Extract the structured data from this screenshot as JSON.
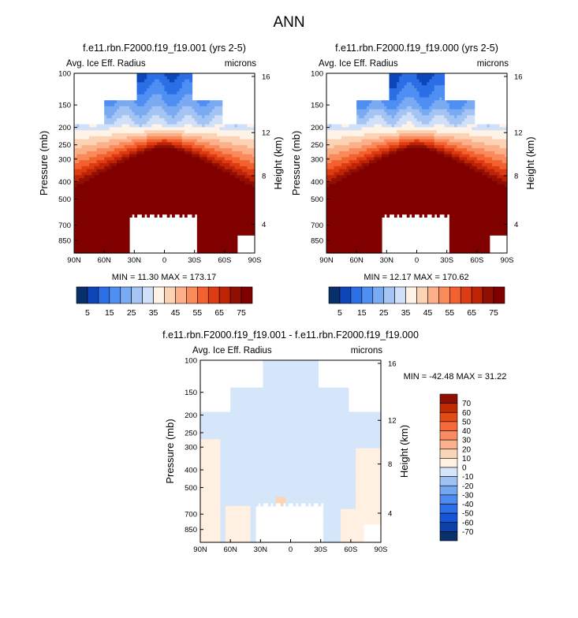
{
  "page": {
    "title": "ANN"
  },
  "colors": {
    "levels": [
      "#08306b",
      "#0c46b8",
      "#2b6ee6",
      "#4f8ef2",
      "#7aaaf2",
      "#a4c4f4",
      "#cfe0f8",
      "#fff2e6",
      "#fcd2b4",
      "#fbb08a",
      "#f88a5c",
      "#f2612e",
      "#dd3b12",
      "#bf2306",
      "#900f02",
      "#800000"
    ],
    "diff_levels": [
      "#08306b",
      "#0c3fa8",
      "#1656d6",
      "#2d6fe8",
      "#4e8bf0",
      "#74a6f2",
      "#9fc2f5",
      "#d5e6fa",
      "#fff0e2",
      "#fbd5b8",
      "#fbb18c",
      "#f88c60",
      "#f46a38",
      "#e24a16",
      "#c02a04",
      "#8f0e00"
    ]
  },
  "chart_data": [
    {
      "type": "heatmap",
      "title": "f.e11.rbn.F2000.f19_f19.001 (yrs 2-5)",
      "left_label": "Avg. Ice Eff. Radius",
      "right_label": "microns",
      "ylabel": "Pressure (mb)",
      "ylabel_right": "Height (km)",
      "x_ticks": [
        "90N",
        "60N",
        "30N",
        "0",
        "30S",
        "60S",
        "90S"
      ],
      "x_values": [
        90,
        60,
        30,
        0,
        -30,
        -60,
        -90
      ],
      "y_ticks": [
        100,
        150,
        200,
        250,
        300,
        400,
        500,
        700,
        850
      ],
      "y_right_ticks": [
        16,
        12,
        8,
        4
      ],
      "ylim": [
        1000,
        100
      ],
      "stats": "MIN =  11.30   MAX = 173.17",
      "min": 11.3,
      "max": 173.17,
      "colorbar": {
        "labels": [
          "5",
          "15",
          "25",
          "35",
          "45",
          "55",
          "65",
          "75"
        ]
      }
    },
    {
      "type": "heatmap",
      "title": "f.e11.rbn.F2000.f19_f19.000 (yrs 2-5)",
      "left_label": "Avg. Ice Eff. Radius",
      "right_label": "microns",
      "ylabel": "Pressure (mb)",
      "ylabel_right": "Height (km)",
      "x_ticks": [
        "90N",
        "60N",
        "30N",
        "0",
        "30S",
        "60S",
        "90S"
      ],
      "x_values": [
        90,
        60,
        30,
        0,
        -30,
        -60,
        -90
      ],
      "y_ticks": [
        100,
        150,
        200,
        250,
        300,
        400,
        500,
        700,
        850
      ],
      "y_right_ticks": [
        16,
        12,
        8,
        4
      ],
      "ylim": [
        1000,
        100
      ],
      "stats": "MIN =  12.17   MAX = 170.62",
      "min": 12.17,
      "max": 170.62,
      "colorbar": {
        "labels": [
          "5",
          "15",
          "25",
          "35",
          "45",
          "55",
          "65",
          "75"
        ]
      }
    },
    {
      "type": "heatmap",
      "title": "f.e11.rbn.F2000.f19_f19.001 - f.e11.rbn.F2000.f19_f19.000",
      "left_label": "Avg. Ice Eff. Radius",
      "right_label": "microns",
      "ylabel": "Pressure (mb)",
      "ylabel_right": "Height (km)",
      "x_ticks": [
        "90N",
        "60N",
        "30N",
        "0",
        "30S",
        "60S",
        "90S"
      ],
      "x_values": [
        90,
        60,
        30,
        0,
        -30,
        -60,
        -90
      ],
      "y_ticks": [
        100,
        150,
        200,
        250,
        300,
        400,
        500,
        700,
        850
      ],
      "y_right_ticks": [
        16,
        12,
        8,
        4
      ],
      "ylim": [
        1000,
        100
      ],
      "stats": "MIN = -42.48   MAX =  31.22",
      "min": -42.48,
      "max": 31.22,
      "colorbar": {
        "labels": [
          "70",
          "60",
          "50",
          "40",
          "30",
          "20",
          "10",
          "0",
          "-10",
          "-20",
          "-30",
          "-40",
          "-50",
          "-60",
          "-70"
        ]
      }
    }
  ]
}
